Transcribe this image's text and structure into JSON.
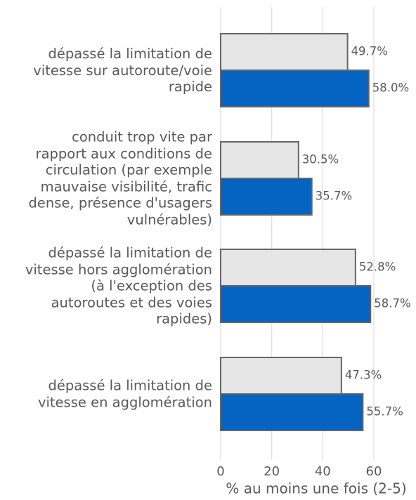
{
  "chart_data": {
    "type": "bar",
    "orientation": "horizontal",
    "categories": [
      "dépassé la limitation de\nvitesse sur autoroute/voie\nrapide",
      "conduit trop vite par\nrapport aux conditions de\ncirculation (par exemple\nmauvaise visibilité, trafic\ndense, présence d'usagers\nvulnérables)",
      "dépassé la limitation de\nvitesse hors agglomération\n(à l'exception des\nautoroutes et des voies\nrapides)",
      "dépassé la limitation de\nvitesse en agglomération"
    ],
    "series": [
      {
        "color": "#e6e6e6",
        "values": [
          49.7,
          30.5,
          52.8,
          47.3
        ],
        "value_labels": [
          "49.7%",
          "30.5%",
          "52.8%",
          "47.3%"
        ]
      },
      {
        "color": "#0563c1",
        "values": [
          58.0,
          35.7,
          58.7,
          55.7
        ],
        "value_labels": [
          "58.0%",
          "35.7%",
          "58.7%",
          "55.7%"
        ]
      }
    ],
    "xlim": [
      0,
      75
    ],
    "xticks": [
      0,
      20,
      40,
      60
    ],
    "grid": true,
    "xlabel": "% au moins une fois (2-5)"
  }
}
